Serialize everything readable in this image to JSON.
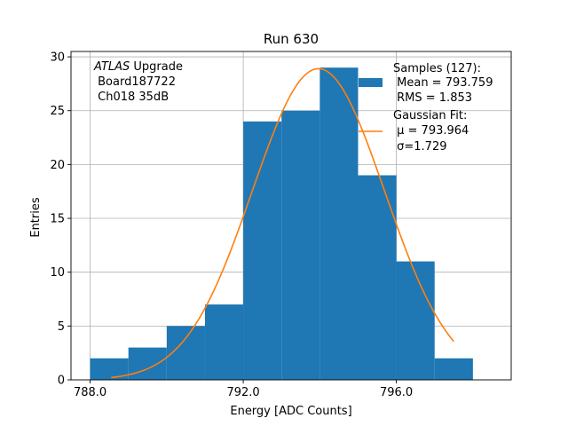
{
  "chart_data": {
    "type": "bar",
    "title": "Run 630",
    "xlabel": "Energy [ADC Counts]",
    "ylabel": "Entries",
    "xlim": [
      787.5,
      799.0
    ],
    "ylim": [
      0,
      30.5
    ],
    "grid": true,
    "xticks": [
      788.0,
      792.0,
      796.0
    ],
    "xtick_labels": [
      "788.0",
      "792.0",
      "796.0"
    ],
    "yticks": [
      0,
      5,
      10,
      15,
      20,
      25,
      30
    ],
    "ytick_labels": [
      "0",
      "5",
      "10",
      "15",
      "20",
      "25",
      "30"
    ],
    "bins": [
      {
        "left": 788,
        "right": 789,
        "count": 2
      },
      {
        "left": 789,
        "right": 790,
        "count": 3
      },
      {
        "left": 790,
        "right": 791,
        "count": 5
      },
      {
        "left": 791,
        "right": 792,
        "count": 7
      },
      {
        "left": 792,
        "right": 793,
        "count": 24
      },
      {
        "left": 793,
        "right": 794,
        "count": 25
      },
      {
        "left": 794,
        "right": 795,
        "count": 29
      },
      {
        "left": 795,
        "right": 796,
        "count": 19
      },
      {
        "left": 796,
        "right": 797,
        "count": 11
      },
      {
        "left": 797,
        "right": 798,
        "count": 2
      }
    ],
    "fit": {
      "type": "gaussian",
      "mu": 793.964,
      "sigma": 1.729,
      "amplitude": 28.9,
      "x_range": [
        788.55,
        797.5
      ]
    },
    "colors": {
      "bars": "#1f77b4",
      "fit": "#ff7f0e"
    },
    "annotation": {
      "italic": "ATLAS",
      "rest": " Upgrade",
      "line2": " Board187722",
      "line3": " Ch018 35dB"
    },
    "legend": {
      "position": "top-right",
      "samples": {
        "line1": "Samples (127):",
        "line2": " Mean = 793.759",
        "line3": " RMS = 1.853"
      },
      "fit": {
        "line1": "Gaussian Fit:",
        "line2": " μ = 793.964",
        "line3": " σ=1.729"
      }
    }
  }
}
